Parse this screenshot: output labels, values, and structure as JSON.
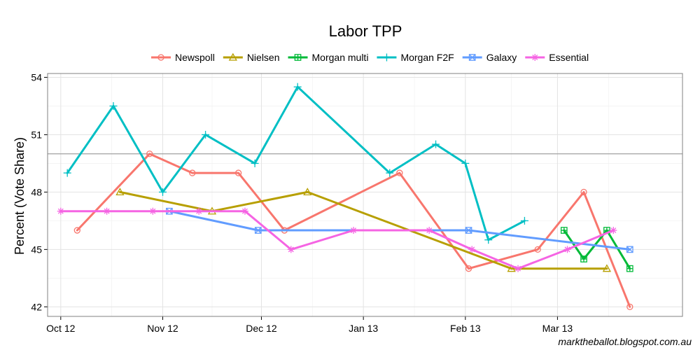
{
  "chart_data": {
    "type": "line",
    "title": "Labor TPP",
    "xlabel": "",
    "ylabel": "Percent (Vote Share)",
    "ylim": [
      41.5,
      54.2
    ],
    "yticks": [
      42,
      45,
      48,
      51,
      54
    ],
    "xlim": [
      "2012-09-27",
      "2013-04-08"
    ],
    "xticks": [
      {
        "date": "2012-10-01",
        "label": "Oct 12"
      },
      {
        "date": "2012-11-01",
        "label": "Nov 12"
      },
      {
        "date": "2012-12-01",
        "label": "Dec 12"
      },
      {
        "date": "2013-01-01",
        "label": "Jan 13"
      },
      {
        "date": "2013-02-01",
        "label": "Feb 13"
      },
      {
        "date": "2013-03-01",
        "label": "Mar 13"
      }
    ],
    "reference_line": 50,
    "grid": true,
    "legend_position": "top",
    "series": [
      {
        "name": "Newspoll",
        "color": "#F8766D",
        "marker": "circle",
        "points": [
          [
            "2012-10-06",
            46
          ],
          [
            "2012-10-28",
            50
          ],
          [
            "2012-11-10",
            49
          ],
          [
            "2012-11-24",
            49
          ],
          [
            "2012-12-08",
            46
          ],
          [
            "2013-01-12",
            49
          ],
          [
            "2013-02-02",
            44
          ],
          [
            "2013-02-23",
            45
          ],
          [
            "2013-03-09",
            48
          ],
          [
            "2013-03-23",
            42
          ]
        ]
      },
      {
        "name": "Nielsen",
        "color": "#B79F00",
        "marker": "triangle",
        "points": [
          [
            "2012-10-19",
            48
          ],
          [
            "2012-11-16",
            47
          ],
          [
            "2012-12-15",
            48
          ],
          [
            "2013-02-15",
            44
          ],
          [
            "2013-03-16",
            44
          ]
        ]
      },
      {
        "name": "Morgan multi",
        "color": "#00BA38",
        "marker": "square-plus",
        "points": [
          [
            "2013-03-03",
            46
          ],
          [
            "2013-03-09",
            44.5
          ],
          [
            "2013-03-16",
            46
          ],
          [
            "2013-03-23",
            44
          ]
        ]
      },
      {
        "name": "Morgan F2F",
        "color": "#00BFC4",
        "marker": "plus",
        "points": [
          [
            "2012-10-03",
            49
          ],
          [
            "2012-10-17",
            52.5
          ],
          [
            "2012-11-01",
            48
          ],
          [
            "2012-11-14",
            51
          ],
          [
            "2012-11-29",
            49.5
          ],
          [
            "2012-12-12",
            53.5
          ],
          [
            "2013-01-09",
            49
          ],
          [
            "2013-01-23",
            50.5
          ],
          [
            "2013-02-01",
            49.5
          ],
          [
            "2013-02-08",
            45.5
          ],
          [
            "2013-02-19",
            46.5
          ]
        ]
      },
      {
        "name": "Galaxy",
        "color": "#619CFF",
        "marker": "square-x",
        "points": [
          [
            "2012-11-03",
            47
          ],
          [
            "2012-11-30",
            46
          ],
          [
            "2013-02-02",
            46
          ],
          [
            "2013-03-23",
            45
          ]
        ]
      },
      {
        "name": "Essential",
        "color": "#F564E3",
        "marker": "asterisk",
        "points": [
          [
            "2012-10-01",
            47
          ],
          [
            "2012-10-15",
            47
          ],
          [
            "2012-10-29",
            47
          ],
          [
            "2012-11-12",
            47
          ],
          [
            "2012-11-26",
            47
          ],
          [
            "2012-12-10",
            45
          ],
          [
            "2012-12-29",
            46
          ],
          [
            "2013-01-21",
            46
          ],
          [
            "2013-02-03",
            45
          ],
          [
            "2013-02-17",
            44
          ],
          [
            "2013-03-04",
            45
          ],
          [
            "2013-03-18",
            46
          ]
        ]
      }
    ]
  },
  "caption": "marktheballot.blogspot.com.au"
}
